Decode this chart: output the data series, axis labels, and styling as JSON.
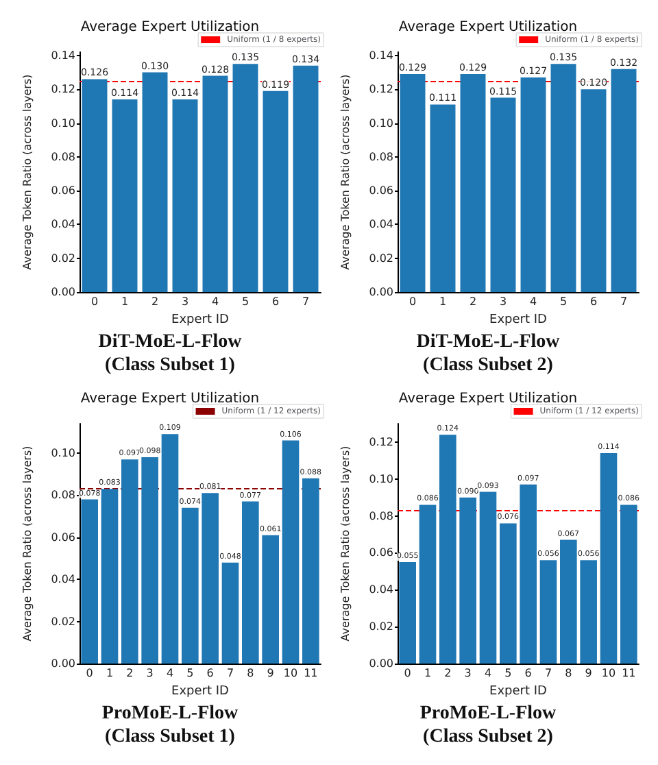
{
  "chart_data": [
    {
      "type": "bar",
      "title": "Average Expert Utilization",
      "xlabel": "Expert ID",
      "ylabel": "Average Token Ratio (across layers)",
      "annotations": [
        "DiT-MoE-L-Flow\n(Class Subset 1)"
      ],
      "categories": [
        "0",
        "1",
        "2",
        "3",
        "4",
        "5",
        "6",
        "7"
      ],
      "values": [
        0.126,
        0.114,
        0.13,
        0.114,
        0.128,
        0.135,
        0.119,
        0.134
      ],
      "value_labels": [
        "0.126",
        "0.114",
        "0.130",
        "0.114",
        "0.128",
        "0.135",
        "0.119",
        "0.134"
      ],
      "color": "#1f77b4",
      "ylim": [
        0,
        0.142
      ],
      "yticks": [
        {
          "value": 0,
          "label": "0.00"
        },
        {
          "value": 0.02,
          "label": "0.02"
        },
        {
          "value": 0.04,
          "label": "0.04"
        },
        {
          "value": 0.06,
          "label": "0.06"
        },
        {
          "value": 0.08,
          "label": "0.08"
        },
        {
          "value": 0.1,
          "label": "0.10"
        },
        {
          "value": 0.12,
          "label": "0.12"
        },
        {
          "value": 0.14,
          "label": "0.14"
        }
      ],
      "ref_lines": [
        {
          "axis": "y",
          "value": 0.125,
          "label": "Uniform (1 / 8 experts)",
          "color": "#ff0000",
          "line_style": "dashed"
        }
      ],
      "legend": "top right",
      "grid": false
    },
    {
      "type": "bar",
      "title": "Average Expert Utilization",
      "xlabel": "Expert ID",
      "ylabel": "Average Token Ratio (across layers)",
      "annotations": [
        "DiT-MoE-L-Flow\n(Class Subset 2)"
      ],
      "categories": [
        "0",
        "1",
        "2",
        "3",
        "4",
        "5",
        "6",
        "7"
      ],
      "values": [
        0.129,
        0.111,
        0.129,
        0.115,
        0.127,
        0.135,
        0.12,
        0.132
      ],
      "value_labels": [
        "0.129",
        "0.111",
        "0.129",
        "0.115",
        "0.127",
        "0.135",
        "0.120",
        "0.132"
      ],
      "color": "#1f77b4",
      "ylim": [
        0,
        0.142
      ],
      "yticks": [
        {
          "value": 0,
          "label": "0.00"
        },
        {
          "value": 0.02,
          "label": "0.02"
        },
        {
          "value": 0.04,
          "label": "0.04"
        },
        {
          "value": 0.06,
          "label": "0.06"
        },
        {
          "value": 0.08,
          "label": "0.08"
        },
        {
          "value": 0.1,
          "label": "0.10"
        },
        {
          "value": 0.12,
          "label": "0.12"
        },
        {
          "value": 0.14,
          "label": "0.14"
        }
      ],
      "ref_lines": [
        {
          "axis": "y",
          "value": 0.125,
          "label": "Uniform (1 / 8 experts)",
          "color": "#ff0000",
          "line_style": "dashed"
        }
      ],
      "legend": "top right",
      "grid": false
    },
    {
      "type": "bar",
      "title": "Average Expert Utilization",
      "xlabel": "Expert ID",
      "ylabel": "Average Token Ratio (across layers)",
      "annotations": [
        "ProMoE-L-Flow\n(Class Subset 1)"
      ],
      "categories": [
        "0",
        "1",
        "2",
        "3",
        "4",
        "5",
        "6",
        "7",
        "8",
        "9",
        "10",
        "11"
      ],
      "values": [
        0.078,
        0.083,
        0.097,
        0.098,
        0.109,
        0.074,
        0.081,
        0.048,
        0.077,
        0.061,
        0.106,
        0.088
      ],
      "value_labels": [
        "0.078",
        "0.083",
        "0.097",
        "0.098",
        "0.109",
        "0.074",
        "0.081",
        "0.048",
        "0.077",
        "0.061",
        "0.106",
        "0.088"
      ],
      "color": "#1f77b4",
      "ylim": [
        0,
        0.114
      ],
      "yticks": [
        {
          "value": 0,
          "label": "0.00"
        },
        {
          "value": 0.02,
          "label": "0.02"
        },
        {
          "value": 0.04,
          "label": "0.04"
        },
        {
          "value": 0.06,
          "label": "0.06"
        },
        {
          "value": 0.08,
          "label": "0.08"
        },
        {
          "value": 0.1,
          "label": "0.10"
        }
      ],
      "ref_lines": [
        {
          "axis": "y",
          "value": 0.0833,
          "label": "Uniform (1 / 12 experts)",
          "color": "#8b0000",
          "line_style": "dashed"
        }
      ],
      "legend": "top right",
      "grid": false
    },
    {
      "type": "bar",
      "title": "Average Expert Utilization",
      "xlabel": "Expert ID",
      "ylabel": "Average Token Ratio (across layers)",
      "annotations": [
        "ProMoE-L-Flow\n(Class Subset 2)"
      ],
      "categories": [
        "0",
        "1",
        "2",
        "3",
        "4",
        "5",
        "6",
        "7",
        "8",
        "9",
        "10",
        "11"
      ],
      "values": [
        0.055,
        0.086,
        0.124,
        0.09,
        0.093,
        0.076,
        0.097,
        0.056,
        0.067,
        0.056,
        0.114,
        0.086
      ],
      "value_labels": [
        "0.055",
        "0.086",
        "0.124",
        "0.090",
        "0.093",
        "0.076",
        "0.097",
        "0.056",
        "0.067",
        "0.056",
        "0.114",
        "0.086"
      ],
      "color": "#1f77b4",
      "ylim": [
        0,
        0.13
      ],
      "yticks": [
        {
          "value": 0,
          "label": "0.00"
        },
        {
          "value": 0.02,
          "label": "0.02"
        },
        {
          "value": 0.04,
          "label": "0.04"
        },
        {
          "value": 0.06,
          "label": "0.06"
        },
        {
          "value": 0.08,
          "label": "0.08"
        },
        {
          "value": 0.1,
          "label": "0.10"
        },
        {
          "value": 0.12,
          "label": "0.12"
        }
      ],
      "ref_lines": [
        {
          "axis": "y",
          "value": 0.0833,
          "label": "Uniform (1 / 12 experts)",
          "color": "#ff0000",
          "line_style": "dashed"
        }
      ],
      "legend": "top right",
      "grid": false
    }
  ]
}
